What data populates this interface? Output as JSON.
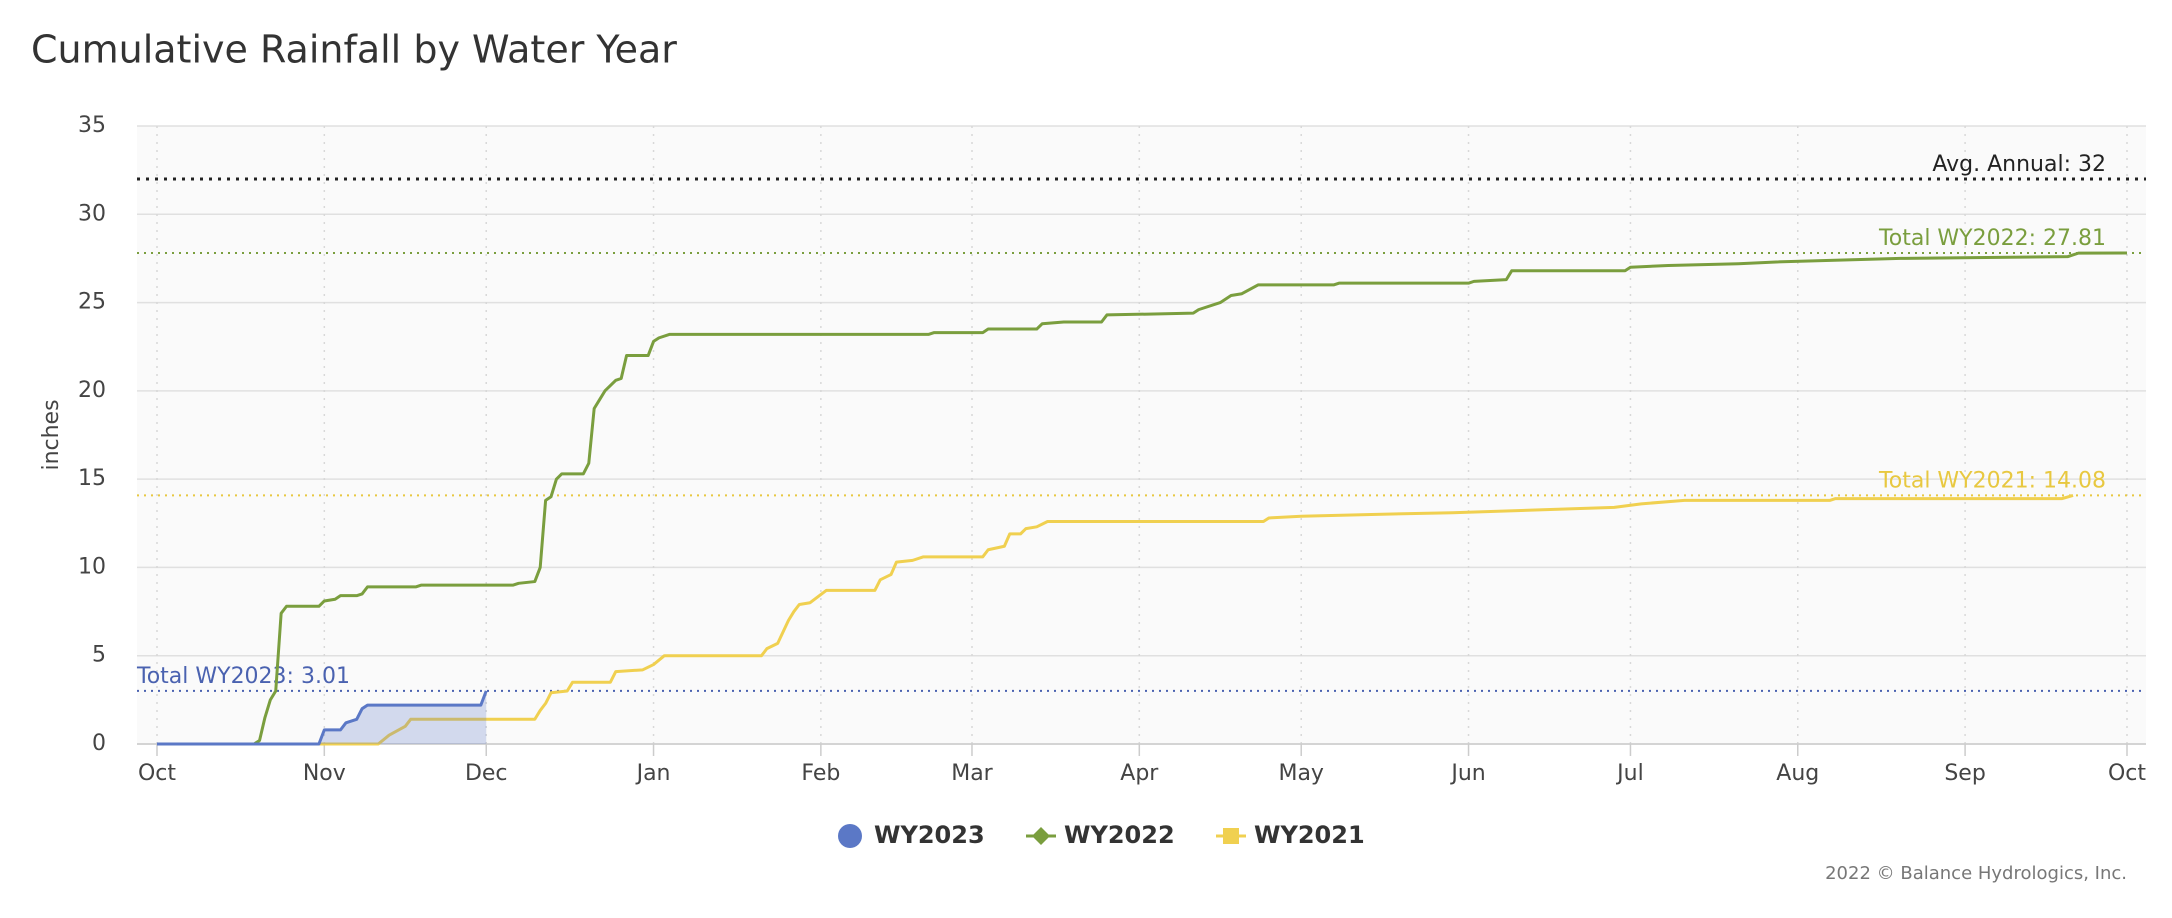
{
  "chart_data": {
    "type": "line",
    "title": "Cumulative Rainfall by Water Year",
    "y_label": "inches",
    "credit": "2022 © Balance Hydrologics, Inc.",
    "xlim": [
      0,
      365
    ],
    "ylim": [
      0,
      35
    ],
    "xticks": [
      {
        "value": 0,
        "label": "Oct"
      },
      {
        "value": 31,
        "label": "Nov"
      },
      {
        "value": 61,
        "label": "Dec"
      },
      {
        "value": 92,
        "label": "Jan"
      },
      {
        "value": 123,
        "label": "Feb"
      },
      {
        "value": 151,
        "label": "Mar"
      },
      {
        "value": 182,
        "label": "Apr"
      },
      {
        "value": 212,
        "label": "May"
      },
      {
        "value": 243,
        "label": "Jun"
      },
      {
        "value": 273,
        "label": "Jul"
      },
      {
        "value": 304,
        "label": "Aug"
      },
      {
        "value": 335,
        "label": "Sep"
      },
      {
        "value": 365,
        "label": "Oct"
      }
    ],
    "yticks": [
      0,
      5,
      10,
      15,
      20,
      25,
      30,
      35
    ],
    "grid": true,
    "plot_lines": [
      {
        "label": "Avg. Annual: 32",
        "value": 32,
        "color": "#222222"
      },
      {
        "label": "Total WY2022: 27.81",
        "value": 27.81,
        "color": "#7a9e3e"
      },
      {
        "label": "Total WY2021: 14.08",
        "value": 14.08,
        "color": "#e8c840"
      },
      {
        "label": "Total WY2023: 3.01",
        "value": 3.01,
        "color": "#4a62b0"
      }
    ],
    "series": [
      {
        "name": "WY2023",
        "color": "#5b78c6",
        "marker": "circle",
        "area": true,
        "x": [
          0,
          30,
          31,
          34,
          35,
          37,
          38,
          39,
          60,
          61
        ],
        "values": [
          0,
          0,
          0.8,
          0.8,
          1.2,
          1.4,
          2.0,
          2.2,
          2.2,
          3.01
        ]
      },
      {
        "name": "WY2022",
        "color": "#7a9e3e",
        "marker": "diamond",
        "x": [
          0,
          18,
          19,
          20,
          21,
          22,
          23,
          24,
          30,
          31,
          33,
          34,
          37,
          38,
          39,
          48,
          49,
          66,
          67,
          70,
          71,
          72,
          73,
          74,
          75,
          79,
          80,
          81,
          82,
          83,
          84,
          85,
          86,
          87,
          91,
          92,
          93,
          95,
          143,
          144,
          153,
          154,
          163,
          164,
          168,
          175,
          176,
          192,
          193,
          197,
          199,
          201,
          204,
          218,
          219,
          243,
          244,
          250,
          251,
          272,
          273,
          280,
          293,
          300,
          323,
          354,
          356,
          365
        ],
        "values": [
          0,
          0,
          0.2,
          1.5,
          2.5,
          3,
          7.4,
          7.8,
          7.8,
          8.1,
          8.2,
          8.4,
          8.4,
          8.5,
          8.9,
          8.9,
          9.0,
          9.0,
          9.1,
          9.2,
          10,
          13.8,
          14,
          15,
          15.3,
          15.3,
          15.9,
          19.0,
          19.5,
          20.0,
          20.3,
          20.6,
          20.7,
          22.0,
          22.0,
          22.8,
          23.0,
          23.2,
          23.2,
          23.3,
          23.3,
          23.5,
          23.5,
          23.8,
          23.9,
          23.9,
          24.3,
          24.4,
          24.6,
          25.0,
          25.4,
          25.5,
          26.0,
          26.0,
          26.1,
          26.1,
          26.2,
          26.3,
          26.8,
          26.8,
          27.0,
          27.1,
          27.2,
          27.3,
          27.5,
          27.6,
          27.8,
          27.81
        ]
      },
      {
        "name": "WY2021",
        "color": "#f0d050",
        "marker": "square",
        "x": [
          0,
          41,
          43,
          46,
          47,
          70,
          71,
          72,
          73,
          76,
          77,
          84,
          85,
          90,
          92,
          94,
          112,
          113,
          115,
          117,
          118,
          119,
          121,
          124,
          133,
          134,
          136,
          137,
          140,
          142,
          153,
          154,
          157,
          158,
          160,
          161,
          163,
          165,
          205,
          206,
          212,
          225,
          240,
          270,
          275,
          283,
          310,
          311,
          353,
          355
        ],
        "values": [
          0,
          0,
          0.5,
          1.0,
          1.4,
          1.4,
          1.9,
          2.3,
          2.9,
          3.0,
          3.5,
          3.5,
          4.1,
          4.2,
          4.5,
          5.0,
          5.0,
          5.4,
          5.7,
          7.0,
          7.5,
          7.9,
          8.0,
          8.7,
          8.7,
          9.3,
          9.6,
          10.3,
          10.4,
          10.6,
          10.6,
          11.0,
          11.2,
          11.9,
          11.9,
          12.2,
          12.3,
          12.6,
          12.6,
          12.8,
          12.9,
          13.0,
          13.1,
          13.4,
          13.6,
          13.8,
          13.8,
          13.9,
          13.9,
          14.08
        ]
      }
    ]
  }
}
